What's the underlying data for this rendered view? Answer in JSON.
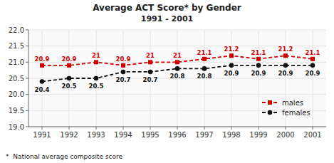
{
  "chart_data": {
    "type": "line",
    "title": "Average ACT Score* by Gender",
    "subtitle": "1991 - 2001",
    "annotations": [
      "*  National average composite score"
    ],
    "x": [
      1991,
      1992,
      1993,
      1994,
      1995,
      1996,
      1997,
      1998,
      1999,
      2000,
      2001
    ],
    "xlim": [
      1990.5,
      2001.5
    ],
    "xticks": [
      1991,
      1992,
      1993,
      1994,
      1995,
      1996,
      1997,
      1998,
      1999,
      2000,
      2001
    ],
    "ylim": [
      19.0,
      22.0
    ],
    "yticks": [
      {
        "value": 19.0,
        "label": "19.0"
      },
      19.5,
      {
        "value": 20.0,
        "label": "20.0"
      },
      20.5,
      {
        "value": 21.0,
        "label": "21.0"
      },
      21.5,
      {
        "value": 22.0,
        "label": "22.0"
      }
    ],
    "grid": true,
    "legend": "lower right",
    "data_labels": true,
    "series": [
      {
        "name": "males",
        "color": "#CC0000",
        "marker": "square",
        "line_style": "dashed",
        "values": [
          20.9,
          20.9,
          21.0,
          20.9,
          21.0,
          21.0,
          21.1,
          21.2,
          21.1,
          21.2,
          21.1
        ],
        "value_labels": [
          "20.9",
          "20.9",
          "21",
          "20.9",
          "21",
          "21",
          "21.1",
          "21.2",
          "21.1",
          "21.2",
          "21.1"
        ]
      },
      {
        "name": "females",
        "color": "#111111",
        "marker": "circle",
        "line_style": "dashed",
        "values": [
          20.4,
          20.5,
          20.5,
          20.7,
          20.7,
          20.8,
          20.8,
          20.9,
          20.9,
          20.9,
          20.9
        ],
        "value_labels": [
          "20.4",
          "20.5",
          "20.5",
          "20.7",
          "20.7",
          "20.8",
          "20.8",
          "20.9",
          "20.9",
          "20.9",
          "20.9"
        ]
      }
    ]
  }
}
